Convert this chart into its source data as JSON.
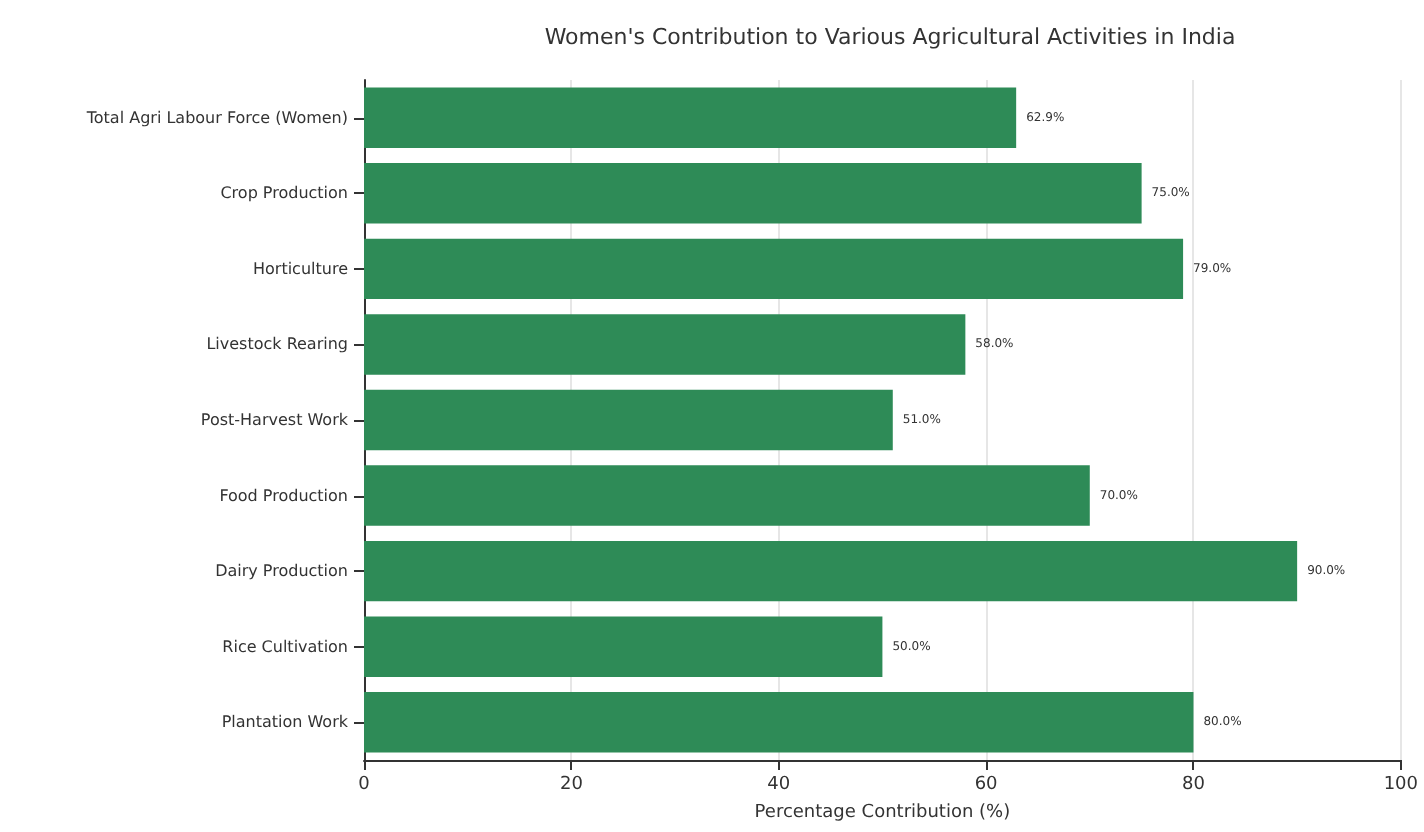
{
  "chart_data": {
    "type": "bar",
    "orientation": "horizontal",
    "title": "Women's Contribution to Various Agricultural Activities in India",
    "xlabel": "Percentage Contribution (%)",
    "categories": [
      "Total Agri Labour Force (Women)",
      "Crop Production",
      "Horticulture",
      "Livestock Rearing",
      "Post-Harvest Work",
      "Food Production",
      "Dairy Production",
      "Rice Cultivation",
      "Plantation Work"
    ],
    "values": [
      62.9,
      75.0,
      79.0,
      58.0,
      51.0,
      70.0,
      90.0,
      50.0,
      80.0
    ],
    "value_labels": [
      "62.9%",
      "75.0%",
      "79.0%",
      "58.0%",
      "51.0%",
      "70.0%",
      "90.0%",
      "50.0%",
      "80.0%"
    ],
    "color": "#2e8b57",
    "xlim": [
      0,
      100
    ],
    "xticks": [
      0,
      20,
      40,
      60,
      80,
      100
    ],
    "grid": "x"
  }
}
